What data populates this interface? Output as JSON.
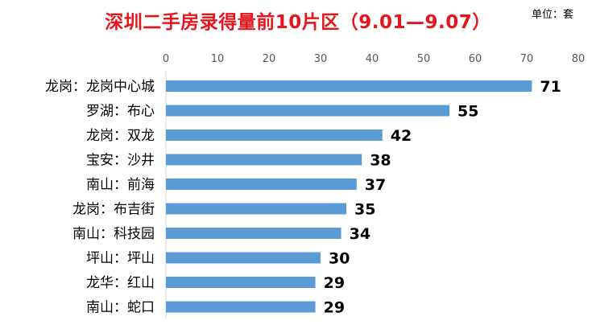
{
  "header": {
    "title": "深圳二手房录得量前10片区（9.01—9.07）",
    "unit": "单位：套"
  },
  "colors": {
    "bar": "#5b9bd5",
    "title": "#e8141b"
  },
  "chart_data": {
    "type": "bar",
    "orientation": "horizontal",
    "title": "深圳二手房录得量前10片区（9.01—9.07）",
    "unit_label": "单位：套",
    "categories": [
      "龙岗：龙岗中心城",
      "罗湖：布心",
      "龙岗：双龙",
      "宝安：沙井",
      "南山：前海",
      "龙岗：布吉街",
      "南山：科技园",
      "坪山：坪山",
      "龙华：红山",
      "南山：蛇口"
    ],
    "values": [
      71,
      55,
      42,
      38,
      37,
      35,
      34,
      30,
      29,
      29
    ],
    "xlim": [
      0,
      80
    ],
    "x_ticks": [
      0,
      10,
      20,
      30,
      40,
      50,
      60,
      70,
      80
    ],
    "x_axis_position": "top",
    "data_labels": true,
    "grid": false,
    "legend": "none"
  }
}
